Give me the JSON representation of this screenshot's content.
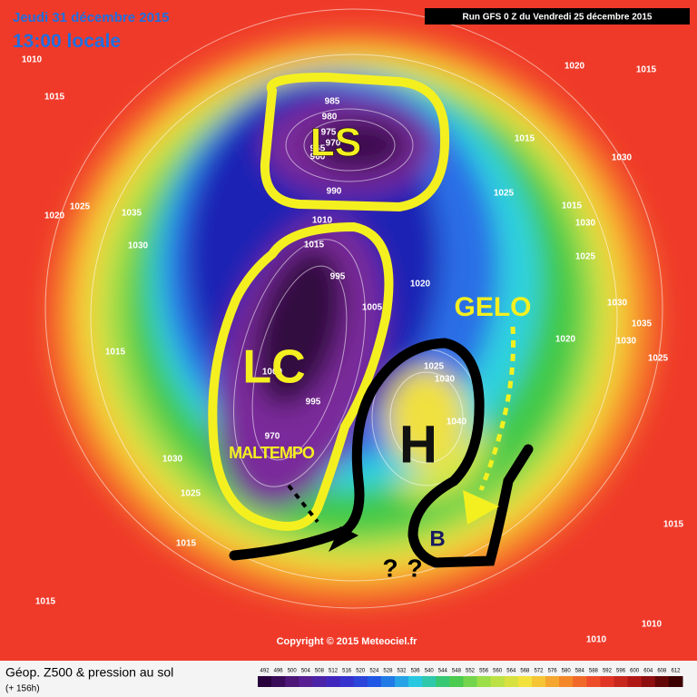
{
  "header": {
    "date": "Jeudi 31 décembre 2015",
    "time": "13:00 locale",
    "run": "Run GFS 0 Z du Vendredi 25 décembre 2015"
  },
  "annotations": {
    "ls": "LS",
    "lc": "LC",
    "gelo": "GELO",
    "h": "H",
    "b": "B",
    "maltempo": "MALTEMPO",
    "question_1": "?",
    "question_2": "?"
  },
  "isobar_labels": [
    1010,
    1015,
    1020,
    1025,
    1035,
    1030,
    1015,
    1030,
    1025,
    1015,
    1015,
    1020,
    1015,
    1015,
    1030,
    1025,
    1030,
    1015,
    1025,
    1020,
    1030,
    1035,
    1030,
    1025,
    1020,
    1025,
    1030,
    1040,
    1015,
    1010,
    1010,
    985,
    980,
    975,
    970,
    965,
    960,
    990,
    1010,
    1015,
    995,
    1005,
    1000,
    995,
    970
  ],
  "copyright": "Copyright © 2015 Meteociel.fr",
  "legend": {
    "title": "Géop. Z500 & pression au sol",
    "lead_time": "(+ 156h)",
    "scale": [
      492,
      496,
      500,
      504,
      508,
      512,
      516,
      520,
      524,
      528,
      532,
      536,
      540,
      544,
      548,
      552,
      556,
      560,
      564,
      568,
      572,
      576,
      580,
      584,
      588,
      592,
      596,
      600,
      604,
      608,
      612
    ]
  }
}
